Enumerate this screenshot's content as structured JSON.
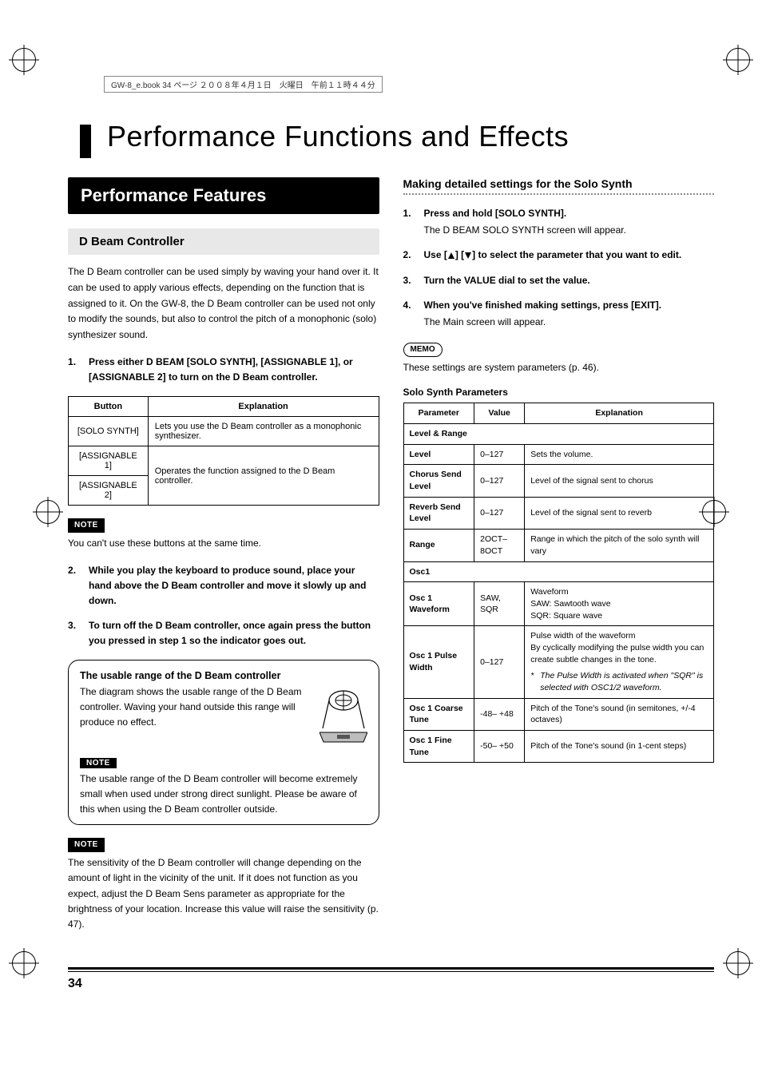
{
  "book_header": "GW-8_e.book 34 ページ ２００８年４月１日　火曜日　午前１１時４４分",
  "chapter_title": "Performance Functions and Effects",
  "page_number": "34",
  "left": {
    "section_banner": "Performance Features",
    "subsection": "D Beam Controller",
    "intro": "The D Beam controller can be used simply by waving your hand over it. It can be used to apply various effects, depending on the function that is assigned to it. On the GW-8, the D Beam controller can be used not only to modify the sounds, but also to control the pitch of a monophonic (solo) synthesizer sound.",
    "step1": "Press either D BEAM [SOLO SYNTH], [ASSIGNABLE 1], or [ASSIGNABLE 2] to turn on the D Beam controller.",
    "button_table": {
      "headers": [
        "Button",
        "Explanation"
      ],
      "rows": [
        {
          "button": "[SOLO SYNTH]",
          "expl": "Lets you use the D Beam controller as a monophonic synthesizer."
        },
        {
          "button": "[ASSIGNABLE 1]",
          "expl_rowspan": "Operates the function assigned to the D Beam controller."
        },
        {
          "button": "[ASSIGNABLE 2]"
        }
      ]
    },
    "note1_label": "NOTE",
    "note1": "You can't use these buttons at the same time.",
    "step2": "While you play the keyboard to produce sound, place your hand above the D Beam controller and move it slowly up and down.",
    "step3": "To turn off the D Beam controller, once again press the button you pressed in step 1 so the indicator goes out.",
    "box_title": "The usable range of the D Beam controller",
    "box_text": "The diagram shows the usable range of the D Beam controller. Waving your hand outside this range will produce no effect.",
    "note2_label": "NOTE",
    "note2": "The usable range of the D Beam controller will become extremely small when used under strong direct sunlight. Please be aware of this when using the D Beam controller outside.",
    "note3_label": "NOTE",
    "note3": "The sensitivity of the D Beam controller will change depending on the amount of light in the vicinity of the unit. If it does not function as you expect, adjust the D Beam Sens parameter as appropriate for the brightness of your location. Increase this value will raise the sensitivity (p. 47)."
  },
  "right": {
    "h3": "Making detailed settings for the Solo Synth",
    "steps": [
      {
        "bold": "Press and hold [SOLO SYNTH].",
        "plain": "The D BEAM SOLO SYNTH screen will appear."
      },
      {
        "bold_prefix": "Use [",
        "bold_mid": "] [",
        "bold_suffix": "] to select the parameter that you want to edit."
      },
      {
        "bold": "Turn the VALUE dial to set the value."
      },
      {
        "bold": "When you've finished making settings, press [EXIT].",
        "plain": "The Main screen will appear."
      }
    ],
    "memo_label": "MEMO",
    "memo": "These settings are system parameters (p. 46).",
    "params_title": "Solo Synth Parameters",
    "params_table": {
      "headers": [
        "Parameter",
        "Value",
        "Explanation"
      ],
      "sections": [
        {
          "name": "Level & Range",
          "rows": [
            {
              "param": "Level",
              "value": "0–127",
              "expl": "Sets the volume."
            },
            {
              "param": "Chorus Send Level",
              "value": "0–127",
              "expl": "Level of the signal sent to chorus"
            },
            {
              "param": "Reverb Send Level",
              "value": "0–127",
              "expl": "Level of the signal sent to reverb"
            },
            {
              "param": "Range",
              "value": "2OCT–8OCT",
              "expl": "Range in which the pitch of the solo synth will vary"
            }
          ]
        },
        {
          "name": "Osc1",
          "rows": [
            {
              "param": "Osc 1 Waveform",
              "value": "SAW, SQR",
              "expl": "Waveform\nSAW: Sawtooth wave\nSQR: Square wave"
            },
            {
              "param": "Osc 1 Pulse Width",
              "value": "0–127",
              "expl": "Pulse width of the waveform\nBy cyclically modifying the pulse width you can create subtle changes in the tone.",
              "star": "The Pulse Width is activated when \"SQR\" is selected with OSC1/2 waveform."
            },
            {
              "param": "Osc 1 Coarse Tune",
              "value": "-48– +48",
              "expl": "Pitch of the Tone's sound (in semitones, +/-4 octaves)"
            },
            {
              "param": "Osc 1 Fine Tune",
              "value": "-50– +50",
              "expl": "Pitch of the Tone's sound (in 1-cent steps)"
            }
          ]
        }
      ]
    }
  },
  "colors": {
    "banner_bg": "#000000",
    "banner_fg": "#ffffff",
    "sub_bg": "#e8e8e8",
    "border": "#000000",
    "dotted": "#888888"
  }
}
